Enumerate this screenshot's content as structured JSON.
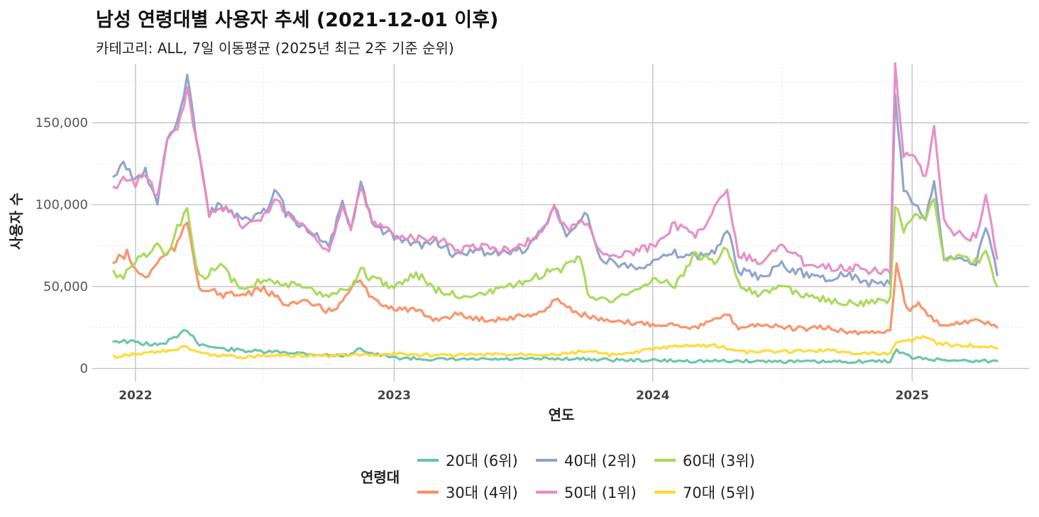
{
  "chart_data": {
    "type": "line",
    "title": "남성 연령대별 사용자 추세 (2021-12-01 이후)",
    "subtitle": "카테고리: ALL, 7일 이동평균 (2025년 최근 2주 기준 순위)",
    "xlabel": "연도",
    "ylabel": "사용자 수",
    "x_ticks": [
      "2022",
      "2023",
      "2024",
      "2025"
    ],
    "y_ticks": [
      "0",
      "50,000",
      "100,000",
      "150,000"
    ],
    "ylim": [
      -8000,
      186000
    ],
    "xlim": [
      "2021-11-01",
      "2025-06-15"
    ],
    "grid": true,
    "legend_title": "연령대",
    "legend_position": "bottom",
    "series": [
      {
        "name": "20대 (6위)",
        "color": "#66C2A5",
        "dates": [
          "2021-12-01",
          "2022-01-01",
          "2022-02-01",
          "2022-03-01",
          "2022-03-15",
          "2022-04-01",
          "2022-05-01",
          "2022-06-01",
          "2022-07-01",
          "2022-08-01",
          "2022-09-01",
          "2022-10-01",
          "2022-11-01",
          "2022-11-10",
          "2022-12-01",
          "2023-01-01",
          "2023-03-01",
          "2023-06-01",
          "2023-09-01",
          "2023-12-01",
          "2024-03-01",
          "2024-06-01",
          "2024-09-01",
          "2024-12-01",
          "2024-12-10",
          "2025-01-01",
          "2025-02-01",
          "2025-03-01",
          "2025-04-01",
          "2025-05-01"
        ],
        "values": [
          17000,
          16000,
          14000,
          19000,
          24000,
          15000,
          12000,
          11000,
          10000,
          10000,
          9000,
          8000,
          8000,
          13000,
          9000,
          6500,
          5500,
          5500,
          6000,
          5000,
          4500,
          4500,
          4000,
          4500,
          11000,
          6500,
          5500,
          5000,
          4500,
          4500
        ]
      },
      {
        "name": "30대 (4위)",
        "color": "#FC8D62",
        "dates": [
          "2021-12-01",
          "2021-12-20",
          "2022-01-01",
          "2022-01-15",
          "2022-02-01",
          "2022-03-01",
          "2022-03-15",
          "2022-04-01",
          "2022-05-01",
          "2022-06-01",
          "2022-07-01",
          "2022-08-01",
          "2022-09-01",
          "2022-10-01",
          "2022-10-20",
          "2022-11-10",
          "2022-12-01",
          "2023-01-01",
          "2023-02-01",
          "2023-03-01",
          "2023-04-01",
          "2023-05-01",
          "2023-06-01",
          "2023-07-01",
          "2023-08-01",
          "2023-08-20",
          "2023-09-10",
          "2023-10-01",
          "2023-11-01",
          "2023-12-01",
          "2024-01-01",
          "2024-02-01",
          "2024-03-01",
          "2024-04-01",
          "2024-04-15",
          "2024-05-01",
          "2024-06-01",
          "2024-07-01",
          "2024-08-01",
          "2024-09-01",
          "2024-10-01",
          "2024-11-01",
          "2024-12-01",
          "2024-12-10",
          "2024-12-25",
          "2025-01-10",
          "2025-02-01",
          "2025-03-01",
          "2025-04-01",
          "2025-05-01"
        ],
        "values": [
          65000,
          70000,
          60000,
          55000,
          65000,
          75000,
          90000,
          50000,
          45000,
          45000,
          48000,
          40000,
          40000,
          35000,
          40000,
          55000,
          42000,
          37000,
          35000,
          30000,
          33000,
          30000,
          30000,
          32000,
          35000,
          43000,
          35000,
          32000,
          28000,
          28000,
          27000,
          27000,
          25000,
          30000,
          33000,
          25000,
          27000,
          25000,
          24000,
          25000,
          22000,
          22000,
          23000,
          65000,
          35000,
          40000,
          28000,
          27000,
          30000,
          25000
        ]
      },
      {
        "name": "40대 (2위)",
        "color": "#8DA0CB",
        "dates": [
          "2021-12-01",
          "2021-12-15",
          "2022-01-01",
          "2022-01-15",
          "2022-02-01",
          "2022-02-15",
          "2022-03-01",
          "2022-03-15",
          "2022-04-01",
          "2022-04-15",
          "2022-05-01",
          "2022-06-01",
          "2022-07-01",
          "2022-07-20",
          "2022-08-01",
          "2022-09-01",
          "2022-10-01",
          "2022-10-20",
          "2022-11-01",
          "2022-11-15",
          "2022-12-01",
          "2023-01-01",
          "2023-02-01",
          "2023-03-01",
          "2023-04-01",
          "2023-05-01",
          "2023-06-01",
          "2023-07-01",
          "2023-08-01",
          "2023-08-15",
          "2023-09-01",
          "2023-10-01",
          "2023-10-15",
          "2023-11-01",
          "2023-12-01",
          "2024-01-01",
          "2024-02-01",
          "2024-03-01",
          "2024-04-01",
          "2024-04-15",
          "2024-05-01",
          "2024-06-01",
          "2024-07-01",
          "2024-08-01",
          "2024-09-01",
          "2024-10-01",
          "2024-11-01",
          "2024-12-01",
          "2024-12-08",
          "2024-12-20",
          "2025-01-05",
          "2025-01-20",
          "2025-02-01",
          "2025-02-15",
          "2025-03-01",
          "2025-04-01",
          "2025-04-15",
          "2025-05-01"
        ],
        "values": [
          117000,
          125000,
          115000,
          120000,
          100000,
          140000,
          150000,
          178000,
          130000,
          95000,
          100000,
          90000,
          95000,
          110000,
          95000,
          85000,
          75000,
          100000,
          85000,
          113000,
          88000,
          80000,
          75000,
          78000,
          68000,
          72000,
          70000,
          72000,
          85000,
          100000,
          80000,
          95000,
          70000,
          65000,
          62000,
          65000,
          70000,
          68000,
          73000,
          85000,
          60000,
          55000,
          63000,
          58000,
          55000,
          58000,
          52000,
          52000,
          165000,
          110000,
          100000,
          90000,
          115000,
          65000,
          68000,
          65000,
          88000,
          57000
        ]
      },
      {
        "name": "50대 (1위)",
        "color": "#E78AC3",
        "dates": [
          "2021-12-01",
          "2021-12-15",
          "2022-01-01",
          "2022-01-15",
          "2022-02-01",
          "2022-02-15",
          "2022-03-01",
          "2022-03-15",
          "2022-04-01",
          "2022-04-15",
          "2022-05-01",
          "2022-06-01",
          "2022-07-01",
          "2022-07-20",
          "2022-08-01",
          "2022-09-01",
          "2022-10-01",
          "2022-10-20",
          "2022-11-01",
          "2022-11-15",
          "2022-12-01",
          "2023-01-01",
          "2023-02-01",
          "2023-03-01",
          "2023-04-01",
          "2023-05-01",
          "2023-06-01",
          "2023-07-01",
          "2023-08-01",
          "2023-08-15",
          "2023-09-01",
          "2023-10-01",
          "2023-10-15",
          "2023-11-01",
          "2023-12-01",
          "2024-01-01",
          "2024-02-01",
          "2024-03-01",
          "2024-04-01",
          "2024-04-15",
          "2024-05-01",
          "2024-06-01",
          "2024-07-01",
          "2024-08-01",
          "2024-09-01",
          "2024-10-01",
          "2024-11-01",
          "2024-12-01",
          "2024-12-08",
          "2024-12-20",
          "2025-01-05",
          "2025-01-20",
          "2025-02-01",
          "2025-02-15",
          "2025-03-01",
          "2025-04-01",
          "2025-04-15",
          "2025-05-01"
        ],
        "values": [
          110000,
          115000,
          113000,
          118000,
          105000,
          140000,
          145000,
          170000,
          130000,
          95000,
          100000,
          88000,
          92000,
          105000,
          95000,
          85000,
          72000,
          98000,
          85000,
          110000,
          90000,
          82000,
          80000,
          80000,
          72000,
          75000,
          72000,
          75000,
          85000,
          98000,
          85000,
          90000,
          75000,
          68000,
          70000,
          75000,
          88000,
          80000,
          100000,
          108000,
          70000,
          65000,
          75000,
          65000,
          62000,
          62000,
          60000,
          60000,
          185000,
          130000,
          128000,
          115000,
          150000,
          90000,
          82000,
          80000,
          105000,
          67000
        ]
      },
      {
        "name": "60대 (3위)",
        "color": "#A6D854",
        "dates": [
          "2021-12-01",
          "2021-12-15",
          "2022-01-01",
          "2022-02-01",
          "2022-02-15",
          "2022-03-01",
          "2022-03-15",
          "2022-04-01",
          "2022-05-01",
          "2022-06-01",
          "2022-07-01",
          "2022-08-01",
          "2022-09-01",
          "2022-10-01",
          "2022-11-01",
          "2022-11-15",
          "2022-12-01",
          "2023-01-01",
          "2023-02-01",
          "2023-03-01",
          "2023-04-01",
          "2023-05-01",
          "2023-06-01",
          "2023-07-01",
          "2023-08-01",
          "2023-09-01",
          "2023-09-20",
          "2023-10-01",
          "2023-11-01",
          "2023-12-01",
          "2024-01-01",
          "2024-02-01",
          "2024-03-01",
          "2024-04-01",
          "2024-04-15",
          "2024-05-01",
          "2024-06-01",
          "2024-07-01",
          "2024-08-01",
          "2024-09-01",
          "2024-10-01",
          "2024-11-01",
          "2024-12-01",
          "2024-12-08",
          "2024-12-20",
          "2025-01-05",
          "2025-01-20",
          "2025-02-01",
          "2025-02-15",
          "2025-03-01",
          "2025-04-01",
          "2025-04-15",
          "2025-05-01"
        ],
        "values": [
          58000,
          57000,
          65000,
          75000,
          68000,
          85000,
          96000,
          55000,
          62000,
          48000,
          55000,
          52000,
          48000,
          45000,
          50000,
          60000,
          55000,
          50000,
          58000,
          48000,
          45000,
          45000,
          48000,
          52000,
          58000,
          62000,
          70000,
          45000,
          42000,
          45000,
          55000,
          50000,
          70000,
          65000,
          75000,
          52000,
          45000,
          50000,
          45000,
          42000,
          40000,
          40000,
          42000,
          100000,
          85000,
          95000,
          90000,
          105000,
          65000,
          68000,
          65000,
          70000,
          50000
        ]
      },
      {
        "name": "70대 (5위)",
        "color": "#FFD92F",
        "dates": [
          "2021-12-01",
          "2022-01-01",
          "2022-02-01",
          "2022-03-01",
          "2022-03-15",
          "2022-04-01",
          "2022-05-01",
          "2022-06-01",
          "2022-07-01",
          "2022-08-01",
          "2022-09-01",
          "2022-10-01",
          "2022-11-01",
          "2022-12-01",
          "2023-01-01",
          "2023-03-01",
          "2023-06-01",
          "2023-09-01",
          "2023-10-01",
          "2023-11-01",
          "2023-12-01",
          "2024-01-01",
          "2024-02-01",
          "2024-03-01",
          "2024-04-01",
          "2024-05-01",
          "2024-06-01",
          "2024-09-01",
          "2024-11-01",
          "2024-12-01",
          "2024-12-10",
          "2025-01-01",
          "2025-01-20",
          "2025-02-01",
          "2025-03-01",
          "2025-04-01",
          "2025-05-01"
        ],
        "values": [
          7000,
          9000,
          10000,
          12000,
          13000,
          9000,
          8000,
          7000,
          8000,
          8000,
          8000,
          7500,
          8500,
          8000,
          9000,
          8000,
          8500,
          9000,
          11000,
          8000,
          9000,
          12000,
          13000,
          14000,
          14000,
          10000,
          10000,
          11000,
          9000,
          9000,
          17000,
          17000,
          20000,
          16000,
          14000,
          14000,
          12000
        ]
      }
    ]
  }
}
